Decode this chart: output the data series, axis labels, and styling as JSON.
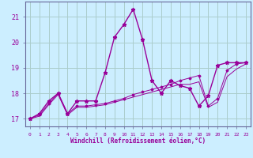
{
  "xlabel": "Windchill (Refroidissement éolien,°C)",
  "background_color": "#cceeff",
  "grid_color": "#aacccc",
  "line_color": "#990099",
  "spine_color": "#666699",
  "xlim": [
    -0.5,
    23.5
  ],
  "ylim": [
    16.7,
    21.6
  ],
  "yticks": [
    17,
    18,
    19,
    20,
    21
  ],
  "xticks": [
    0,
    1,
    2,
    3,
    4,
    5,
    6,
    7,
    8,
    9,
    10,
    11,
    12,
    13,
    14,
    15,
    16,
    17,
    18,
    19,
    20,
    21,
    22,
    23
  ],
  "series": [
    {
      "x": [
        0,
        1,
        2,
        3,
        4,
        5,
        6,
        7,
        8,
        9,
        10,
        11,
        12,
        13,
        14,
        15,
        16,
        17,
        18,
        19,
        20,
        21,
        22,
        23
      ],
      "y": [
        17.0,
        17.2,
        17.7,
        18.0,
        17.2,
        17.7,
        17.7,
        17.7,
        18.8,
        20.2,
        20.7,
        21.3,
        20.1,
        18.5,
        18.0,
        18.5,
        18.3,
        18.2,
        17.5,
        17.9,
        19.1,
        19.2,
        19.2,
        19.2
      ],
      "marker": "*",
      "linestyle": "-",
      "linewidth": 1.0,
      "markersize": 3.5
    },
    {
      "x": [
        0,
        1,
        2,
        3,
        4,
        5,
        6,
        7,
        8,
        9,
        10,
        11,
        12,
        13,
        14,
        15,
        16,
        17,
        18,
        19,
        20,
        21,
        22,
        23
      ],
      "y": [
        17.0,
        17.15,
        17.6,
        18.0,
        17.2,
        17.5,
        17.5,
        17.55,
        17.6,
        17.7,
        17.8,
        17.95,
        18.05,
        18.15,
        18.25,
        18.35,
        18.5,
        18.6,
        18.7,
        17.5,
        17.8,
        18.9,
        19.15,
        19.2
      ],
      "marker": "D",
      "linestyle": "-",
      "linewidth": 0.7,
      "markersize": 1.5
    },
    {
      "x": [
        0,
        1,
        2,
        3,
        4,
        5,
        6,
        7,
        8,
        9,
        10,
        11,
        12,
        13,
        14,
        15,
        16,
        17,
        18,
        19,
        20,
        21,
        22,
        23
      ],
      "y": [
        17.0,
        17.1,
        17.55,
        17.95,
        17.15,
        17.45,
        17.45,
        17.5,
        17.55,
        17.65,
        17.75,
        17.85,
        17.95,
        18.05,
        18.15,
        18.25,
        18.35,
        18.35,
        18.45,
        17.45,
        17.65,
        18.65,
        18.95,
        19.15
      ],
      "marker": null,
      "linestyle": "-",
      "linewidth": 0.7,
      "markersize": 0
    }
  ]
}
